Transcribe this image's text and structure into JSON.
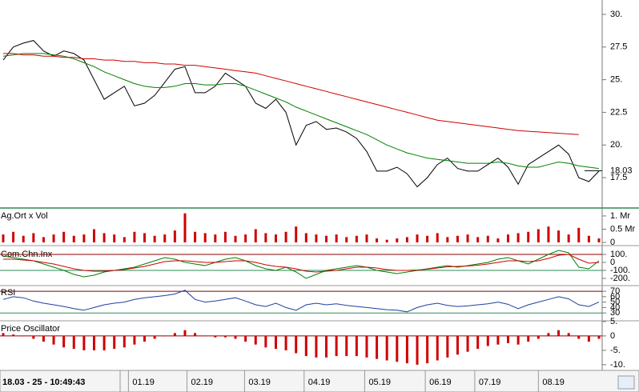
{
  "chart_data": [
    {
      "type": "line",
      "xlim": [
        0,
        59
      ],
      "xticks": [
        {
          "value": 12.4,
          "label": "01.19"
        },
        {
          "value": 18.2,
          "label": "02.19"
        },
        {
          "value": 23.9,
          "label": "03.19"
        },
        {
          "value": 29.8,
          "label": "04.19"
        },
        {
          "value": 35.8,
          "label": "05.19"
        },
        {
          "value": 41.8,
          "label": "06.19"
        },
        {
          "value": 46.7,
          "label": "07.19"
        },
        {
          "value": 53,
          "label": "08.19"
        }
      ],
      "status": "18.03 - 25 - 10:49:43",
      "ylim": [
        15.3,
        31.1
      ],
      "yticks": [
        {
          "value": 30,
          "label": "30."
        },
        {
          "value": 27.5,
          "label": "27.5"
        },
        {
          "value": 25,
          "label": "25."
        },
        {
          "value": 22.5,
          "label": "22.5"
        },
        {
          "value": 20,
          "label": "20."
        },
        {
          "value": 17.5,
          "label": "17.5"
        }
      ],
      "last_price": 18.03,
      "series": [
        {
          "color": "#000000",
          "values": [
            26.5,
            27.5,
            27.8,
            28,
            27.2,
            26.8,
            27.2,
            27,
            26.5,
            25,
            23.5,
            24,
            24.5,
            23,
            23.2,
            23.8,
            24.8,
            25.8,
            26,
            24,
            24,
            24.5,
            25.5,
            25,
            24.5,
            23.2,
            22.8,
            23.5,
            22.5,
            20,
            21.5,
            21.8,
            21.2,
            21.3,
            21,
            20.5,
            19.5,
            18,
            18,
            18.3,
            17.8,
            16.8,
            17.5,
            18.5,
            19,
            18.2,
            18,
            18,
            18.5,
            19,
            18.3,
            17,
            18.5,
            19,
            19.5,
            20,
            19.3,
            17.5,
            17.2,
            18
          ]
        },
        {
          "color": "#008000",
          "values": [
            26.8,
            26.9,
            27,
            27,
            27,
            26.9,
            26.8,
            26.6,
            26.3,
            26,
            25.6,
            25.3,
            25,
            24.7,
            24.5,
            24.4,
            24.4,
            24.5,
            24.7,
            24.7,
            24.6,
            24.6,
            24.7,
            24.7,
            24.5,
            24.2,
            23.9,
            23.6,
            23.3,
            22.9,
            22.6,
            22.3,
            22,
            21.7,
            21.4,
            21.1,
            20.8,
            20.4,
            20,
            19.7,
            19.4,
            19.2,
            19,
            18.9,
            18.8,
            18.7,
            18.6,
            18.6,
            18.6,
            18.7,
            18.6,
            18.4,
            18.3,
            18.3,
            18.5,
            18.7,
            18.6,
            18.4,
            18.3,
            18.2
          ]
        },
        {
          "color": "#d00000",
          "values": [
            27,
            27,
            26.9,
            26.9,
            26.8,
            26.8,
            26.7,
            26.7,
            26.6,
            26.6,
            26.5,
            26.5,
            26.4,
            26.4,
            26.3,
            26.3,
            26.2,
            26.2,
            26.1,
            26.1,
            26,
            25.9,
            25.8,
            25.7,
            25.6,
            25.5,
            25.3,
            25.1,
            24.9,
            24.7,
            24.5,
            24.3,
            24.1,
            23.9,
            23.7,
            23.5,
            23.3,
            23.1,
            22.9,
            22.7,
            22.5,
            22.3,
            22.1,
            21.9,
            21.8,
            21.7,
            21.6,
            21.5,
            21.4,
            21.3,
            21.2,
            21.1,
            21.05,
            21,
            20.95,
            20.9,
            20.85,
            20.8,
            null,
            null
          ]
        }
      ]
    },
    {
      "type": "bar",
      "title": "Ag.Ort x Vol",
      "ylim": [
        0,
        1.24
      ],
      "yticks": [
        {
          "value": 1,
          "label": "1. Mr"
        },
        {
          "value": 0.5,
          "label": "0.5 Mr"
        },
        0
      ],
      "series": [
        {
          "color": "#d00000",
          "values": [
            0.3,
            0.4,
            0.25,
            0.35,
            0.2,
            0.3,
            0.4,
            0.25,
            0.3,
            0.5,
            0.35,
            0.3,
            0.2,
            0.4,
            0.35,
            0.25,
            0.3,
            0.45,
            1.1,
            0.4,
            0.35,
            0.3,
            0.4,
            0.25,
            0.3,
            0.5,
            0.35,
            0.3,
            0.4,
            0.6,
            0.35,
            0.3,
            0.25,
            0.3,
            0.2,
            0.25,
            0.3,
            0.15,
            0.1,
            0.15,
            0.2,
            0.3,
            0.25,
            0.35,
            0.2,
            0.25,
            0.3,
            0.2,
            0.25,
            0.15,
            0.3,
            0.35,
            0.4,
            0.5,
            0.6,
            0.45,
            0.3,
            0.55,
            0.25,
            0.15
          ]
        }
      ]
    },
    {
      "type": "line",
      "title": "Com.Chn.Inx",
      "ylim": [
        -270,
        180
      ],
      "yticks": [
        {
          "value": 100,
          "label": "100."
        },
        0,
        {
          "value": -100,
          "label": "-100."
        },
        {
          "value": -200,
          "label": "-200."
        }
      ],
      "ref_lines": [
        100,
        -100
      ],
      "series": [
        {
          "color": "#008000",
          "values": [
            80,
            60,
            40,
            20,
            -20,
            -60,
            -100,
            -150,
            -180,
            -160,
            -120,
            -100,
            -80,
            -60,
            -20,
            20,
            60,
            40,
            0,
            -20,
            -40,
            0,
            40,
            60,
            20,
            -40,
            -80,
            -100,
            -60,
            -120,
            -200,
            -150,
            -100,
            -80,
            -60,
            -40,
            -60,
            -100,
            -120,
            -140,
            -120,
            -100,
            -80,
            -60,
            -40,
            -60,
            -40,
            -20,
            0,
            40,
            60,
            20,
            -20,
            40,
            100,
            150,
            120,
            -60,
            -80,
            20
          ]
        },
        {
          "color": "#d00000",
          "values": [
            40,
            40,
            30,
            20,
            0,
            -20,
            -50,
            -80,
            -100,
            -110,
            -110,
            -100,
            -90,
            -70,
            -50,
            -20,
            10,
            20,
            20,
            10,
            0,
            0,
            10,
            20,
            20,
            0,
            -30,
            -50,
            -60,
            -80,
            -110,
            -120,
            -110,
            -100,
            -80,
            -60,
            -60,
            -70,
            -90,
            -100,
            -100,
            -95,
            -85,
            -70,
            -55,
            -50,
            -45,
            -35,
            -20,
            0,
            20,
            20,
            10,
            20,
            50,
            90,
            100,
            40,
            -10,
            0
          ]
        }
      ]
    },
    {
      "type": "line",
      "title": "RSI",
      "ylim": [
        17,
        79
      ],
      "yticks": [
        70,
        60,
        50,
        40,
        30
      ],
      "ref_lines": [
        70,
        30
      ],
      "series": [
        {
          "color": "#1f3f9f",
          "values": [
            55,
            60,
            58,
            52,
            48,
            45,
            42,
            38,
            35,
            40,
            45,
            48,
            50,
            55,
            58,
            60,
            62,
            65,
            72,
            55,
            50,
            52,
            55,
            58,
            52,
            45,
            42,
            48,
            40,
            35,
            45,
            48,
            45,
            47,
            44,
            42,
            40,
            38,
            36,
            35,
            32,
            40,
            45,
            48,
            44,
            42,
            43,
            45,
            47,
            50,
            46,
            38,
            45,
            50,
            55,
            60,
            56,
            45,
            42,
            50
          ]
        }
      ]
    },
    {
      "type": "bar",
      "title": "Price Oscillator",
      "ylim": [
        -11.7,
        4.7
      ],
      "yticks": [
        {
          "value": 5,
          "label": "5."
        },
        0,
        {
          "value": -5,
          "label": "-5."
        },
        {
          "value": -10,
          "label": "-10."
        }
      ],
      "ref_lines": [
        0
      ],
      "series": [
        {
          "color": "#d00000",
          "values": [
            1,
            0.5,
            0,
            -1,
            -2,
            -3,
            -4,
            -4.5,
            -5,
            -5,
            -5,
            -4.5,
            -4,
            -3,
            -2,
            -1,
            0,
            1,
            2,
            1,
            0,
            -0.5,
            -0.5,
            -1,
            -2,
            -3,
            -4,
            -4.5,
            -5,
            -6,
            -7,
            -7.5,
            -7.5,
            -7,
            -7,
            -7,
            -7.5,
            -8,
            -8.5,
            -9,
            -9.5,
            -10,
            -9.5,
            -8.5,
            -7.5,
            -6.5,
            -5.5,
            -4.5,
            -3.5,
            -3,
            -2.5,
            -3,
            -2,
            -1,
            1,
            2,
            1,
            -1,
            -2,
            -1
          ]
        }
      ]
    }
  ]
}
